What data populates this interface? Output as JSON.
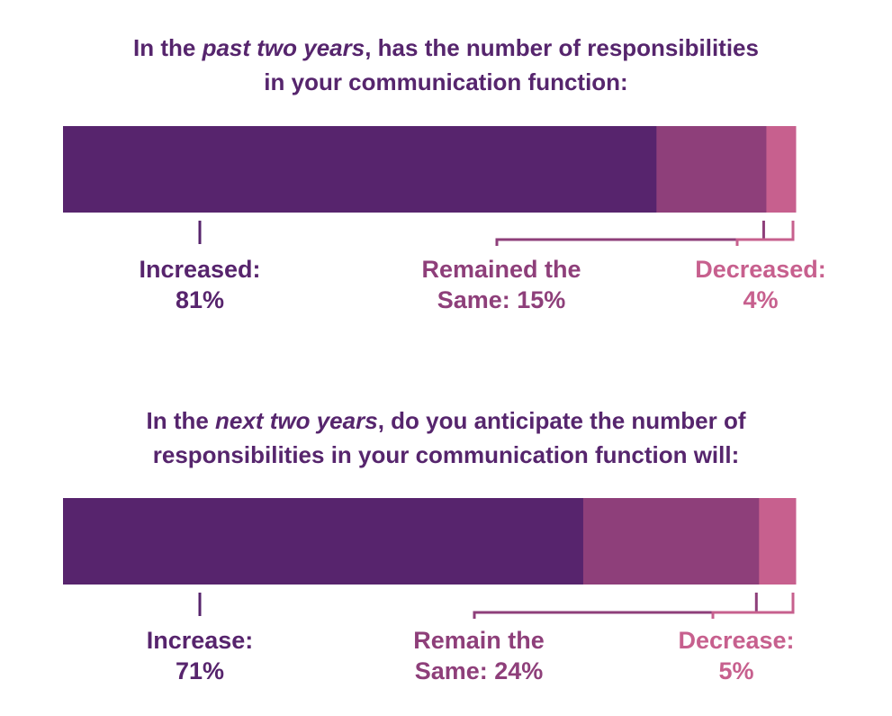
{
  "colors": {
    "increase": "#57246d",
    "same": "#8e3f7a",
    "decrease": "#c7608e",
    "title": "#56256d"
  },
  "chart_data": [
    {
      "type": "bar",
      "orientation": "horizontal-stacked",
      "title_parts": {
        "pre": "In the ",
        "emph": "past two years",
        "post": ", has the number of responsibilities",
        "line2": "in your communication function:"
      },
      "series": [
        {
          "name": "Increased",
          "value": 81,
          "label_line1": "Increased:",
          "label_line2": "81%"
        },
        {
          "name": "Remained the Same",
          "value": 15,
          "label_line1": "Remained the",
          "label_line2": "Same: 15%"
        },
        {
          "name": "Decreased",
          "value": 4,
          "label_line1": "Decreased:",
          "label_line2": "4%"
        }
      ]
    },
    {
      "type": "bar",
      "orientation": "horizontal-stacked",
      "title_parts": {
        "pre": "In the ",
        "emph": "next two years",
        "post": ", do you anticipate the number of",
        "line2": "responsibilities in your communication function will:"
      },
      "series": [
        {
          "name": "Increase",
          "value": 71,
          "label_line1": "Increase:",
          "label_line2": "71%"
        },
        {
          "name": "Remain the Same",
          "value": 24,
          "label_line1": "Remain the",
          "label_line2": "Same: 24%"
        },
        {
          "name": "Decrease",
          "value": 5,
          "label_line1": "Decrease:",
          "label_line2": "5%"
        }
      ]
    }
  ]
}
